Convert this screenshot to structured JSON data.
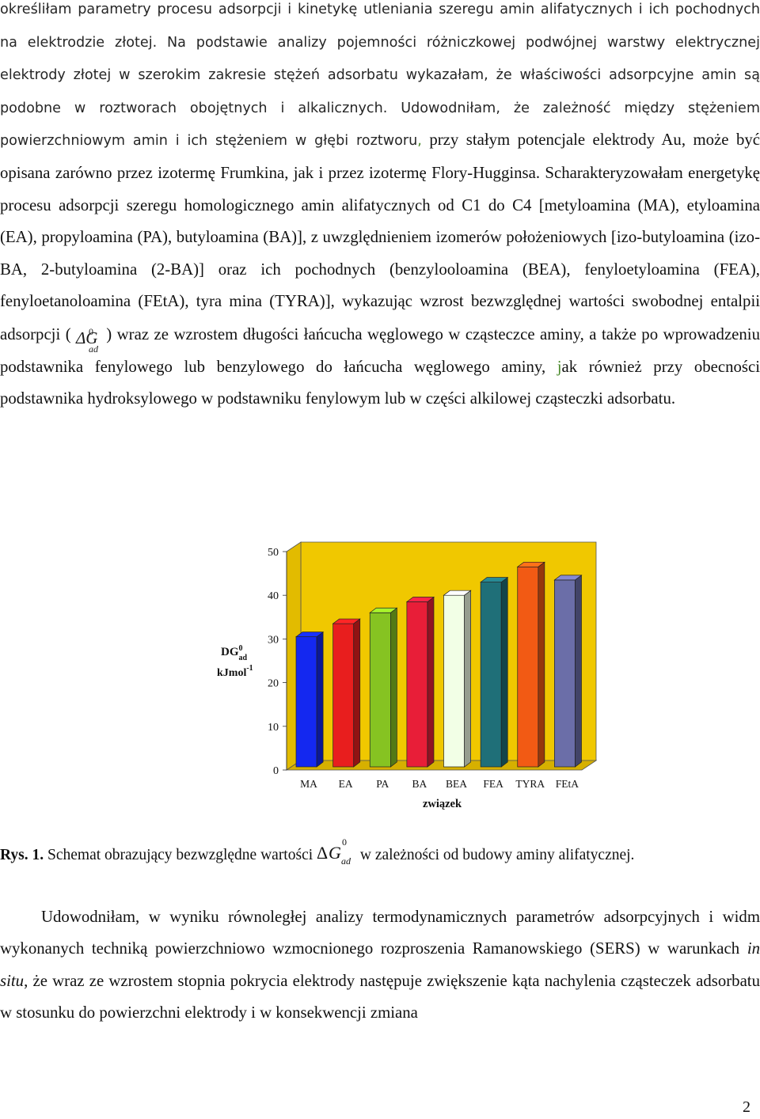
{
  "paragraph1": {
    "s1": "określiłam parametry procesu adsorpcji i kinetykę utleniania szeregu amin alifatycznych i ich pochodnych na elektrodzie złotej. Na podstawie analizy pojemności różniczkowej podwójnej warstwy elektrycznej elektrody złotej w szerokim zakresie stężeń adsorbatu wykazałam, że właściwości adsorpcyjne amin są podobne w roztworach obojętnych i alkalicznych. Udowodniłam, że zależność między stężeniem powierzchniowym amin i ich stężeniem w głębi roztworu",
    "s1_comma": ",",
    "s2": " przy stałym potencjale elektrody Au, może być opisana zarówno przez izotermę Frumkina, jak i przez izotermę Flory-Hugginsa.",
    "s3": " Scharakteryzowałam energetykę procesu adsorpcji szeregu homologicznego amin alifatycznych od C1 do C4 [metyloamina (MA), etyloamina (EA), propyloamina (PA), butyloamina (BA)], z uwzględnieniem izomerów położeniowych [izo-butyloamina (izo-BA, 2-butyloamina (2-BA)] oraz ich pochodnych (benzylooloamina (BEA), fenyloetyloamina (FEA), fenyloetanoloamina (FEtA), tyra mina (TYRA)], wykazując wzrost bezwzględnej wartości swobodnej entalpii adsorpcji (",
    "formula_symbol": "ΔG",
    "formula_sup": "0",
    "formula_sub": "ad",
    "s4": ") wraz ze wzrostem długości łańcucha węglowego w cząsteczce aminy, a także po wprowadzeniu podstawnika fenylowego lub benzylowego do łańcucha węglowego aminy, ",
    "s4_j": "j",
    "s5": "ak również przy obecności podstawnika hydroksylowego w podstawniku fenylowym lub w części alkilowej cząsteczki adsorbatu."
  },
  "chart_data": {
    "type": "bar",
    "style": "3d",
    "categories": [
      "MA",
      "EA",
      "PA",
      "BA",
      "BEA",
      "FEA",
      "TYRA",
      "FEtA"
    ],
    "values": [
      30.5,
      33.5,
      36,
      38.5,
      40,
      43,
      46.5,
      43.5
    ],
    "colors": [
      "#1428f0",
      "#e81e1e",
      "#86c322",
      "#e81e38",
      "#f2ffe6",
      "#1f6f78",
      "#f25a14",
      "#6b6ea8"
    ],
    "ylim": [
      0,
      50
    ],
    "yticks": [
      "0",
      "10",
      "20",
      "30",
      "40",
      "50"
    ],
    "ylabel_line1": "DG",
    "ylabel_sup": "0",
    "ylabel_sub": "ad",
    "ylabel_line2": "kJmol",
    "ylabel_line2_sup": "-1",
    "xlabel": "związek",
    "background": "#f0c800",
    "floor": "#d6b000"
  },
  "caption": {
    "label": "Rys. 1.",
    "text_before": " Schemat obrazujący bezwzględne wartości",
    "delta": "Δ",
    "g": "G",
    "sup": "0",
    "sub": "ad",
    "text_after": "w zależności od budowy aminy alifatycznej."
  },
  "paragraph2": {
    "text_before": "Udowodniłam, w wyniku równoległej analizy termodynamicznych parametrów adsorpcyjnych i widm wykonanych techniką powierzchniowo wzmocnionego rozproszenia Ramanowskiego (SERS) w warunkach ",
    "italic": "in situ",
    "text_after": ", że wraz ze wzrostem stopnia pokrycia elektrody następuje zwiększenie kąta nachylenia cząsteczek adsorbatu w stosunku do powierzchni elektrody i w konsekwencji zmiana"
  },
  "page_number": "2"
}
